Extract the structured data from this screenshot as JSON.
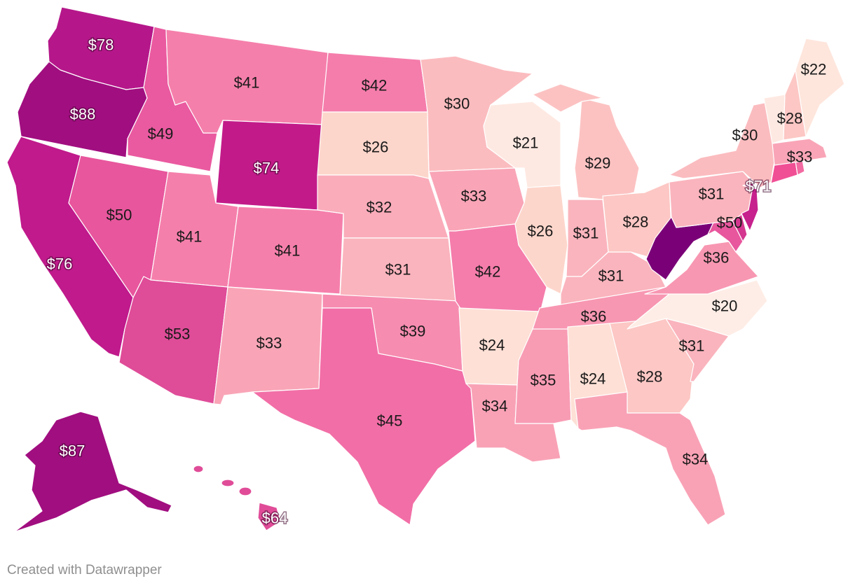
{
  "credit": "Created with Datawrapper",
  "states": [
    {
      "id": "WA",
      "value": 78,
      "label": "$78",
      "color": "#b5178a"
    },
    {
      "id": "OR",
      "value": 88,
      "label": "$88",
      "color": "#a10e80"
    },
    {
      "id": "CA",
      "value": 76,
      "label": "$76",
      "color": "#c01a8c"
    },
    {
      "id": "ID",
      "value": 49,
      "label": "$49",
      "color": "#ea5aa0"
    },
    {
      "id": "NV",
      "value": 50,
      "label": "$50",
      "color": "#e8569d"
    },
    {
      "id": "MT",
      "value": 41,
      "label": "$41",
      "color": "#f57fab"
    },
    {
      "id": "WY",
      "value": 74,
      "label": "$74",
      "color": "#c21b89"
    },
    {
      "id": "UT",
      "value": 41,
      "label": "$41",
      "color": "#f57fab"
    },
    {
      "id": "AZ",
      "value": 53,
      "label": "$53",
      "color": "#df4c98"
    },
    {
      "id": "CO",
      "value": 41,
      "label": "$41",
      "color": "#f57fab"
    },
    {
      "id": "NM",
      "value": 33,
      "label": "$33",
      "color": "#f9a5b7"
    },
    {
      "id": "ND",
      "value": 42,
      "label": "$42",
      "color": "#f57dab"
    },
    {
      "id": "SD",
      "value": 26,
      "label": "$26",
      "color": "#fdd6cb"
    },
    {
      "id": "NE",
      "value": 32,
      "label": "$32",
      "color": "#faacba"
    },
    {
      "id": "KS",
      "value": 31,
      "label": "$31",
      "color": "#fab4bd"
    },
    {
      "id": "OK",
      "value": 39,
      "label": "$39",
      "color": "#f68cb0"
    },
    {
      "id": "TX",
      "value": 45,
      "label": "$45",
      "color": "#f26ea6"
    },
    {
      "id": "MN",
      "value": 30,
      "label": "$30",
      "color": "#fbbcbf"
    },
    {
      "id": "IA",
      "value": 33,
      "label": "$33",
      "color": "#f9a5b7"
    },
    {
      "id": "MO",
      "value": 42,
      "label": "$42",
      "color": "#f57dab"
    },
    {
      "id": "AR",
      "value": 24,
      "label": "$24",
      "color": "#fee0d6"
    },
    {
      "id": "LA",
      "value": 34,
      "label": "$34",
      "color": "#f9a2b6"
    },
    {
      "id": "WI",
      "value": 21,
      "label": "$21",
      "color": "#fee9e2"
    },
    {
      "id": "IL",
      "value": 26,
      "label": "$26",
      "color": "#fdd6cb"
    },
    {
      "id": "MS",
      "value": 35,
      "label": "$35",
      "color": "#f89cb4"
    },
    {
      "id": "MI",
      "value": 29,
      "label": "$29",
      "color": "#fcc2c2"
    },
    {
      "id": "IN",
      "value": 31,
      "label": "$31",
      "color": "#fab4bd"
    },
    {
      "id": "KY",
      "value": 31,
      "label": "$31",
      "color": "#fab4bd"
    },
    {
      "id": "TN",
      "value": 36,
      "label": "$36",
      "color": "#f897b2"
    },
    {
      "id": "AL",
      "value": 24,
      "label": "$24",
      "color": "#fee0d6"
    },
    {
      "id": "OH",
      "value": 28,
      "label": "$28",
      "color": "#fcc7c4"
    },
    {
      "id": "GA",
      "value": 28,
      "label": "$28",
      "color": "#fcc7c4"
    },
    {
      "id": "FL",
      "value": 34,
      "label": "$34",
      "color": "#f9a2b6"
    },
    {
      "id": "SC",
      "value": 31,
      "label": "$31",
      "color": "#fab4bd"
    },
    {
      "id": "NC",
      "value": 20,
      "label": "$20",
      "color": "#feede6"
    },
    {
      "id": "VA",
      "value": 36,
      "label": "$36",
      "color": "#f897b2"
    },
    {
      "id": "WV",
      "value": null,
      "label": "",
      "color": "#7a0077"
    },
    {
      "id": "MD",
      "value": 50,
      "label": "$50",
      "color": "#e8569d"
    },
    {
      "id": "DE",
      "value": null,
      "label": "",
      "color": "#d4368f"
    },
    {
      "id": "PA",
      "value": 31,
      "label": "$31",
      "color": "#fab4bd"
    },
    {
      "id": "NJ",
      "value": 71,
      "label": "$71",
      "color": "#c7218d"
    },
    {
      "id": "NY",
      "value": 30,
      "label": "$30",
      "color": "#fbbcbf"
    },
    {
      "id": "CT",
      "value": null,
      "label": "",
      "color": "#f04f95"
    },
    {
      "id": "RI",
      "value": null,
      "label": "",
      "color": "#f36aa2"
    },
    {
      "id": "MA",
      "value": 33,
      "label": "$33",
      "color": "#f9a5b7"
    },
    {
      "id": "VT",
      "value": null,
      "label": "",
      "color": "#fee9e2"
    },
    {
      "id": "NH",
      "value": 28,
      "label": "$28",
      "color": "#fcc7c4"
    },
    {
      "id": "ME",
      "value": 22,
      "label": "$22",
      "color": "#fee6dd"
    },
    {
      "id": "AK",
      "value": 87,
      "label": "$87",
      "color": "#a10e80"
    },
    {
      "id": "HI",
      "value": 64,
      "label": "$64",
      "color": "#e04c98"
    }
  ]
}
